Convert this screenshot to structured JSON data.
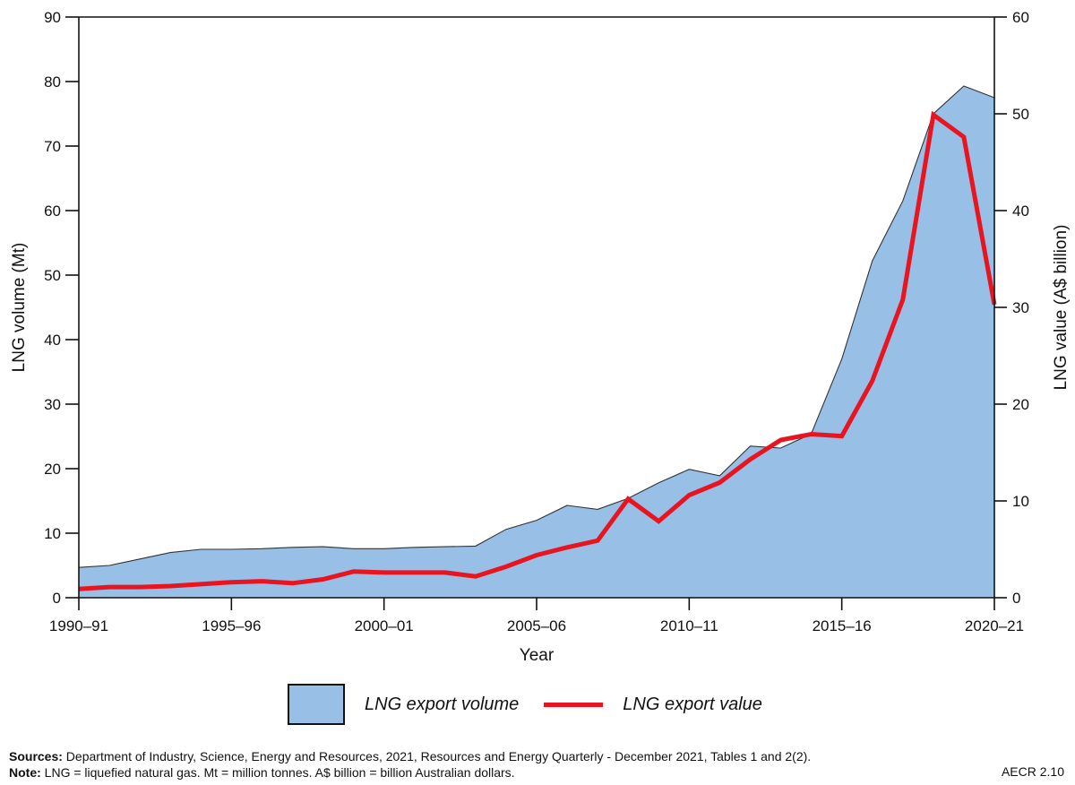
{
  "chart_data": {
    "type": "area+line",
    "title": "",
    "xlabel": "Year",
    "ylabel_left": "LNG volume (Mt)",
    "ylabel_right": "LNG value (A$ billion)",
    "ylim_left": [
      0,
      90
    ],
    "ylim_right": [
      0,
      60
    ],
    "yticks_left": [
      0,
      10,
      20,
      30,
      40,
      50,
      60,
      70,
      80,
      90
    ],
    "yticks_right": [
      0,
      10,
      20,
      30,
      40,
      50,
      60
    ],
    "xtick_labels": [
      "1990–91",
      "1995–96",
      "2000–01",
      "2005–06",
      "2010–11",
      "2015–16",
      "2020–21"
    ],
    "grid": false,
    "legend_position": "bottom-center",
    "categories": [
      "1990–91",
      "1991–92",
      "1992–93",
      "1993–94",
      "1994–95",
      "1995–96",
      "1996–97",
      "1997–98",
      "1998–99",
      "1999–00",
      "2000–01",
      "2001–02",
      "2002–03",
      "2003–04",
      "2004–05",
      "2005–06",
      "2006–07",
      "2007–08",
      "2008–09",
      "2009–10",
      "2010–11",
      "2011–12",
      "2012–13",
      "2013–14",
      "2014–15",
      "2015–16",
      "2016–17",
      "2017–18",
      "2018–19",
      "2019–20",
      "2020–21"
    ],
    "series": [
      {
        "name": "LNG export volume",
        "type": "area",
        "axis": "left",
        "color": "#98bfe6",
        "values": [
          4.7,
          5.0,
          6.0,
          7.0,
          7.5,
          7.5,
          7.6,
          7.8,
          7.9,
          7.6,
          7.6,
          7.8,
          7.9,
          8.0,
          10.6,
          12.0,
          14.3,
          13.7,
          15.4,
          17.8,
          19.9,
          18.9,
          23.5,
          23.2,
          25.4,
          37.0,
          52.2,
          61.5,
          75.0,
          79.3,
          77.5
        ]
      },
      {
        "name": "LNG export value",
        "type": "line",
        "axis": "right",
        "color": "#e8141f",
        "values": [
          0.9,
          1.1,
          1.1,
          1.2,
          1.4,
          1.6,
          1.7,
          1.5,
          1.9,
          2.7,
          2.6,
          2.6,
          2.6,
          2.2,
          3.2,
          4.4,
          5.2,
          5.9,
          10.2,
          7.9,
          10.6,
          11.9,
          14.3,
          16.3,
          16.9,
          16.7,
          22.4,
          30.8,
          49.9,
          47.6,
          30.3
        ]
      }
    ]
  },
  "legend": {
    "volume_label": "LNG export volume",
    "value_label": "LNG export value"
  },
  "footer": {
    "sources_label": "Sources:",
    "sources_text": " Department of Industry, Science, Energy and Resources, 2021, Resources and Energy Quarterly - December 2021, Tables 1 and 2(2).",
    "note_label": "Note:",
    "note_text": " LNG = liquefied natural gas. Mt = million tonnes. A$ billion = billion Australian dollars.",
    "figure_ref": "AECR 2.10"
  }
}
